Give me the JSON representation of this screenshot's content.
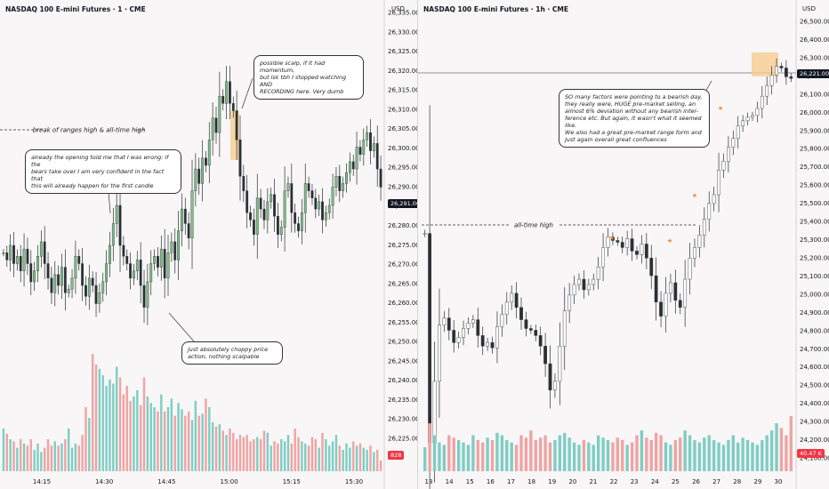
{
  "left": {
    "title": "NASDAQ 100 E-mini Futures · 1 · CME",
    "currency": "USD",
    "price_label": "26,291.00",
    "volume_label": "828",
    "hline_label": "break of ranges high & all-time high",
    "notes": [
      "possible scalp, if it had momentum,\nbut lsk tbh I stopped watching AND\nRECORDING here. Very dumb",
      "already the opening told me that I was wrong: if the\nbears take over I am very confident in the fact that\nthis will already  happen for the first candle",
      "just absolutely choppy price\naction, nothing scalpable"
    ],
    "chart_data": {
      "type": "candlestick",
      "title": "NASDAQ 100 E-mini Futures · 1 · CME",
      "y_ticks": [
        "26,335.00",
        "26,330.00",
        "26,325.00",
        "26,320.00",
        "26,315.00",
        "26,310.00",
        "26,305.00",
        "26,300.00",
        "26,295.00",
        "26,290.00",
        "26,285.00",
        "26,280.00",
        "26,275.00",
        "26,270.00",
        "26,265.00",
        "26,260.00",
        "26,255.00",
        "26,250.00",
        "26,245.00",
        "26,240.00",
        "26,235.00",
        "26,230.00",
        "26,225.00"
      ],
      "x_ticks": [
        "14:15",
        "14:30",
        "14:45",
        "15:00",
        "15:15",
        "15:30"
      ],
      "ylim": [
        26222,
        26339
      ],
      "close": [
        26273,
        26271,
        26275,
        26270,
        26272,
        26268,
        26274,
        26270,
        26265,
        26268,
        26272,
        26276,
        26270,
        26266,
        26262,
        26267,
        26264,
        26269,
        26262,
        26263,
        26266,
        26272,
        26270,
        26264,
        26261,
        26266,
        26264,
        26259,
        26262,
        26265,
        26270,
        26275,
        26281,
        26286,
        26275,
        26272,
        26270,
        26266,
        26268,
        26271,
        26264,
        26258,
        26265,
        26270,
        26272,
        26269,
        26274,
        26266,
        26273,
        26276,
        26271,
        26279,
        26285,
        26281,
        26277,
        26290,
        26296,
        26292,
        26299,
        26297,
        26304,
        26310,
        26306,
        26316,
        26314,
        26320,
        26314,
        26312,
        26304,
        26294,
        26290,
        26284,
        26282,
        26278,
        26288,
        26285,
        26282,
        26287,
        26289,
        26283,
        26278,
        26280,
        26290,
        26292,
        26284,
        26281,
        26279,
        26284,
        26292,
        26290,
        26288,
        26285,
        26287,
        26282,
        26284,
        26286,
        26291,
        26294,
        26290,
        26292,
        26295,
        26298,
        26296,
        26302,
        26300,
        26304,
        26306,
        26301,
        26303,
        26296,
        26291
      ],
      "volume": [
        40,
        35,
        30,
        28,
        22,
        30,
        26,
        24,
        30,
        20,
        26,
        18,
        22,
        30,
        24,
        28,
        24,
        26,
        30,
        40,
        22,
        26,
        24,
        34,
        60,
        50,
        110,
        100,
        96,
        90,
        80,
        86,
        82,
        98,
        88,
        72,
        80,
        66,
        70,
        76,
        62,
        88,
        70,
        64,
        60,
        56,
        72,
        56,
        60,
        68,
        52,
        64,
        58,
        52,
        56,
        48,
        66,
        52,
        54,
        68,
        60,
        46,
        42,
        44,
        38,
        34,
        40,
        36,
        30,
        34,
        32,
        34,
        28,
        30,
        32,
        30,
        38,
        36,
        24,
        28,
        26,
        30,
        28,
        34,
        26,
        40,
        32,
        28,
        26,
        24,
        32,
        30,
        22,
        36,
        30,
        24,
        28,
        34,
        24,
        20,
        26,
        22,
        28,
        24,
        26,
        22,
        20,
        24,
        18,
        20,
        10
      ]
    }
  },
  "right": {
    "title": "NASDAQ 100 E-mini Futures · 1h · CME",
    "currency": "USD",
    "price_label": "26,221.00",
    "volume_label": "40.47 K",
    "hline_label": "all-time high",
    "notes": [
      "SO many factors were pointing to a bearish day,\nthey really were, HUGE pre-market selling, an\nalmost 6% deviation without any bearish inter-\nference etc. But again, it wasn't what it seemed\nlike.\nWe also had a great pre-market range form and\njust again overall great confluences"
    ],
    "chart_data": {
      "type": "candlestick",
      "title": "NASDAQ 100 E-mini Futures · 1h · CME",
      "y_ticks": [
        "26,500.00",
        "26,400.00",
        "26,300.00",
        "26,200.00",
        "26,100.00",
        "26,000.00",
        "25,900.00",
        "25,800.00",
        "25,700.00",
        "25,600.00",
        "25,500.00",
        "25,400.00",
        "25,300.00",
        "25,200.00",
        "25,100.00",
        "25,000.00",
        "24,900.00",
        "24,800.00",
        "24,700.00",
        "24,600.00",
        "24,500.00",
        "24,400.00",
        "24,300.00",
        "24,200.00",
        "24,100.00"
      ],
      "x_ticks": [
        "13",
        "14",
        "15",
        "16",
        "17",
        "18",
        "19",
        "20",
        "21",
        "22",
        "23",
        "24",
        "25",
        "26",
        "27",
        "28",
        "29",
        "30"
      ],
      "ylim": [
        24065,
        26545
      ],
      "close": [
        25340,
        24150,
        24500,
        24820,
        24860,
        24790,
        24720,
        24750,
        24800,
        24830,
        24850,
        24760,
        24700,
        24720,
        24690,
        24810,
        24880,
        24950,
        25000,
        24920,
        24850,
        24800,
        24790,
        24760,
        24700,
        24600,
        24450,
        24500,
        24700,
        24900,
        24990,
        25050,
        25080,
        25020,
        25050,
        25080,
        25150,
        25260,
        25320,
        25300,
        25290,
        25260,
        25310,
        25240,
        25220,
        25280,
        25200,
        25100,
        24950,
        24870,
        25000,
        25060,
        24960,
        24920,
        25080,
        25200,
        25260,
        25330,
        25420,
        25510,
        25560,
        25700,
        25750,
        25830,
        25880,
        25950,
        25980,
        26000,
        26010,
        26050,
        26120,
        26180,
        26240,
        26290,
        26280,
        26230,
        26221
      ],
      "volume": [
        20,
        40,
        30,
        24,
        22,
        30,
        28,
        26,
        24,
        22,
        30,
        26,
        24,
        28,
        26,
        32,
        30,
        26,
        24,
        22,
        30,
        28,
        34,
        26,
        28,
        30,
        24,
        26,
        30,
        32,
        28,
        24,
        22,
        26,
        24,
        22,
        30,
        28,
        26,
        24,
        28,
        26,
        22,
        24,
        30,
        34,
        28,
        26,
        32,
        30,
        24,
        22,
        26,
        28,
        34,
        30,
        26,
        24,
        28,
        30,
        26,
        24,
        22,
        26,
        30,
        24,
        28,
        26,
        24,
        22,
        26,
        30,
        34,
        40,
        36,
        30,
        46
      ]
    }
  },
  "colors": {
    "up": "#26a69a",
    "down": "#ef5350",
    "candle_body": "#2b3035",
    "up_fill": "#7fbf86",
    "vol_up": "#7ecdc4",
    "vol_down": "#f0a3a3",
    "highlight": "#f7c98a",
    "current_price_bg": "#131722",
    "current_vol_bg": "#f23645"
  }
}
